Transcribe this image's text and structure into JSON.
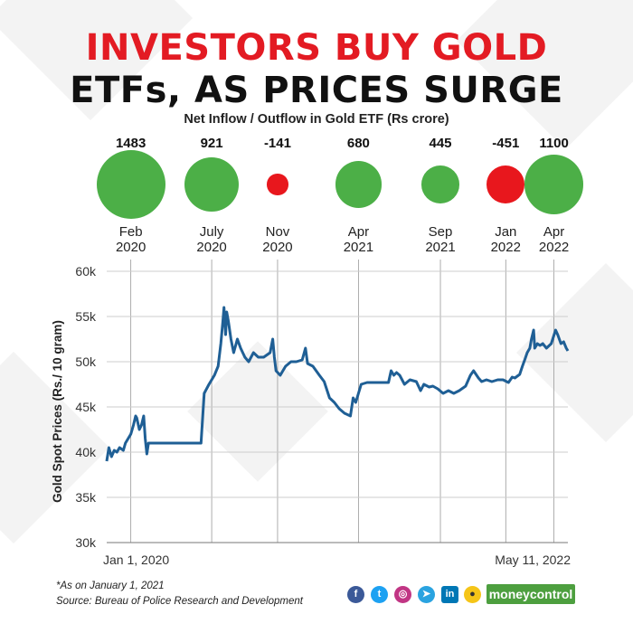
{
  "title_line1": "INVESTORS BUY GOLD",
  "title_line2": "ETFs, AS PRICES SURGE",
  "subtitle": "Net Inflow / Outflow in Gold ETF (Rs crore)",
  "footnote": "*As on January 1, 2021",
  "source": "Source: Bureau of Police Research and Development",
  "brand": "moneycontrol",
  "social_icons": [
    "facebook-icon",
    "twitter-icon",
    "instagram-icon",
    "telegram-icon",
    "linkedin-icon",
    "koo-icon"
  ],
  "colors": {
    "title_red": "#e31b23",
    "inflow_green": "#4caf47",
    "outflow_red": "#e8171d",
    "line_blue": "#1f5f95"
  },
  "chart_data": [
    {
      "type": "bubble",
      "title": "Net Inflow / Outflow in Gold ETF (Rs crore)",
      "series": [
        {
          "month": "Feb",
          "year": "2020",
          "value": 1483,
          "label": "1483"
        },
        {
          "month": "July",
          "year": "2020",
          "value": 921,
          "label": "921"
        },
        {
          "month": "Nov",
          "year": "2020",
          "value": -141,
          "label": "-141"
        },
        {
          "month": "Apr",
          "year": "2021",
          "value": 680,
          "label": "680"
        },
        {
          "month": "Sep",
          "year": "2021",
          "value": 445,
          "label": "445"
        },
        {
          "month": "Jan",
          "year": "2022",
          "value": -451,
          "label": "-451"
        },
        {
          "month": "Apr",
          "year": "2022",
          "value": 1100,
          "label": "1100"
        }
      ]
    },
    {
      "type": "line",
      "ylabel": "Gold Spot Prices (Rs./ 10 gram)",
      "ylim": [
        30000,
        60000
      ],
      "yticks": [
        30000,
        35000,
        40000,
        45000,
        50000,
        55000,
        60000
      ],
      "ytick_labels": [
        "30k",
        "35k",
        "40k",
        "45k",
        "50k",
        "55k",
        "60k"
      ],
      "xlim": [
        "2020-01-01",
        "2022-05-11"
      ],
      "xtick_labels": [
        "Jan 1, 2020",
        "May 11, 2022"
      ],
      "grid": true,
      "series": [
        {
          "x": [
            "2020-01-01",
            "2020-01-05",
            "2020-01-10",
            "2020-01-15",
            "2020-01-20",
            "2020-01-25",
            "2020-02-01",
            "2020-02-05",
            "2020-02-10",
            "2020-02-15",
            "2020-02-20",
            "2020-02-24",
            "2020-02-26",
            "2020-03-02",
            "2020-03-06",
            "2020-03-10",
            "2020-03-13",
            "2020-03-16",
            "2020-03-19",
            "2020-03-24",
            "2020-04-01",
            "2020-04-15",
            "2020-05-01",
            "2020-05-15",
            "2020-06-01",
            "2020-06-15",
            "2020-06-25",
            "2020-07-01",
            "2020-07-10",
            "2020-07-20",
            "2020-07-27",
            "2020-08-01",
            "2020-08-05",
            "2020-08-07",
            "2020-08-10",
            "2020-08-12",
            "2020-08-15",
            "2020-08-20",
            "2020-08-25",
            "2020-09-01",
            "2020-09-07",
            "2020-09-15",
            "2020-09-22",
            "2020-10-01",
            "2020-10-10",
            "2020-10-20",
            "2020-11-01",
            "2020-11-06",
            "2020-11-09",
            "2020-11-12",
            "2020-11-20",
            "2020-11-30",
            "2020-12-10",
            "2020-12-20",
            "2020-12-31",
            "2021-01-06",
            "2021-01-10",
            "2021-01-20",
            "2021-02-01",
            "2021-02-10",
            "2021-02-20",
            "2021-03-01",
            "2021-03-10",
            "2021-03-20",
            "2021-03-31",
            "2021-04-05",
            "2021-04-10",
            "2021-04-20",
            "2021-05-01",
            "2021-05-10",
            "2021-05-20",
            "2021-06-01",
            "2021-06-10",
            "2021-06-15",
            "2021-06-20",
            "2021-06-25",
            "2021-07-01",
            "2021-07-10",
            "2021-07-20",
            "2021-08-01",
            "2021-08-09",
            "2021-08-15",
            "2021-08-25",
            "2021-09-01",
            "2021-09-10",
            "2021-09-20",
            "2021-09-30",
            "2021-10-10",
            "2021-10-20",
            "2021-11-01",
            "2021-11-10",
            "2021-11-16",
            "2021-11-25",
            "2021-12-01",
            "2021-12-10",
            "2021-12-20",
            "2021-12-31",
            "2022-01-10",
            "2022-01-20",
            "2022-01-27",
            "2022-02-01",
            "2022-02-10",
            "2022-02-15",
            "2022-02-20",
            "2022-02-24",
            "2022-03-01",
            "2022-03-04",
            "2022-03-08",
            "2022-03-10",
            "2022-03-15",
            "2022-03-20",
            "2022-03-25",
            "2022-04-01",
            "2022-04-10",
            "2022-04-18",
            "2022-04-22",
            "2022-04-28",
            "2022-05-03",
            "2022-05-08",
            "2022-05-11"
          ],
          "y": [
            39000,
            40500,
            39500,
            40200,
            40000,
            40500,
            40200,
            41000,
            41500,
            42000,
            43000,
            44000,
            43800,
            42500,
            43000,
            44000,
            41500,
            39800,
            41000,
            41000,
            41000,
            41000,
            41000,
            41000,
            41000,
            41000,
            41000,
            46500,
            47500,
            48500,
            49500,
            52000,
            54500,
            56000,
            53000,
            55500,
            54500,
            52500,
            51000,
            52500,
            51500,
            50500,
            50000,
            51000,
            50500,
            50500,
            51000,
            52500,
            50500,
            49000,
            48500,
            49500,
            50000,
            50000,
            50200,
            51500,
            49800,
            49500,
            48500,
            47800,
            46000,
            45500,
            44800,
            44300,
            44000,
            46000,
            45500,
            47500,
            47700,
            47700,
            47700,
            47700,
            47700,
            49000,
            48500,
            48800,
            48500,
            47500,
            48000,
            47800,
            46800,
            47500,
            47200,
            47300,
            47000,
            46500,
            46800,
            46500,
            46800,
            47300,
            48500,
            49000,
            48200,
            47800,
            48000,
            47800,
            48000,
            48000,
            47700,
            48300,
            48200,
            48600,
            49500,
            50300,
            51000,
            51500,
            52500,
            53500,
            51500,
            52000,
            51800,
            52000,
            51500,
            52000,
            53500,
            53000,
            52000,
            52200,
            51500,
            51200
          ]
        }
      ]
    }
  ]
}
